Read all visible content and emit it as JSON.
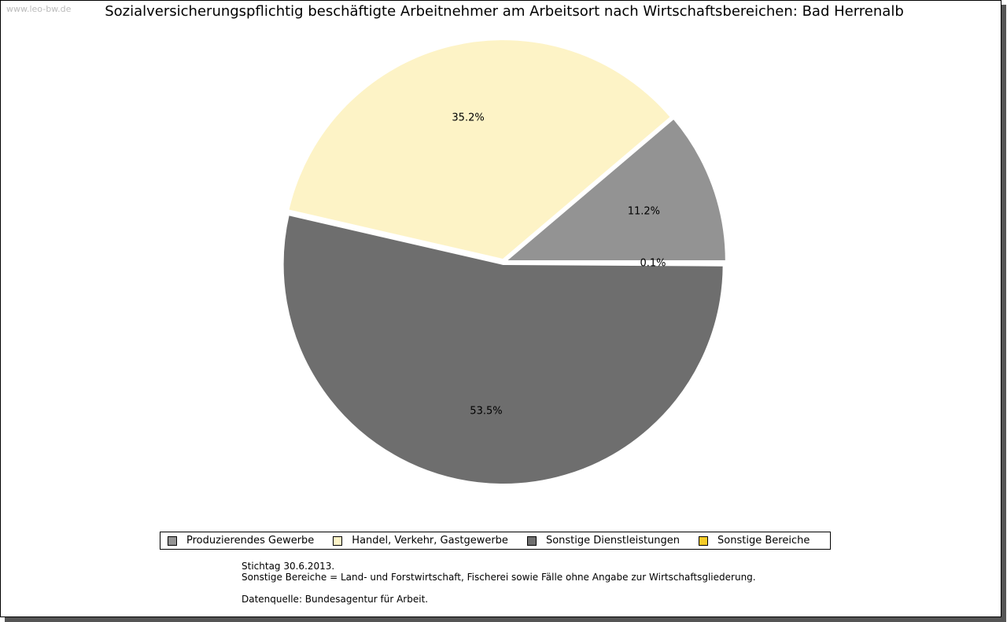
{
  "watermark": "www.leo-bw.de",
  "chart_data": {
    "type": "pie",
    "title": "Sozialversicherungspflichtig beschäftigte Arbeitnehmer am Arbeitsort nach Wirtschaftsbereichen: Bad Herrenalb",
    "slices": [
      {
        "name": "Produzierendes Gewerbe",
        "value": 11.2,
        "label": "11.2%",
        "color": "#939393"
      },
      {
        "name": "Handel, Verkehr, Gastgewerbe",
        "value": 35.2,
        "label": "35.2%",
        "color": "#fdf3c6"
      },
      {
        "name": "Sonstige Dienstleistungen",
        "value": 53.5,
        "label": "53.5%",
        "color": "#6e6e6e"
      },
      {
        "name": "Sonstige Bereiche",
        "value": 0.1,
        "label": "0.1%",
        "color": "#f5cb28"
      }
    ],
    "legend_position": "bottom"
  },
  "notes": {
    "line1": "Stichtag 30.6.2013.",
    "line2": "Sonstige Bereiche = Land- und Forstwirtschaft, Fischerei sowie Fälle ohne Angabe zur Wirtschaftsgliederung.",
    "line3": "Datenquelle: Bundesagentur für Arbeit."
  }
}
